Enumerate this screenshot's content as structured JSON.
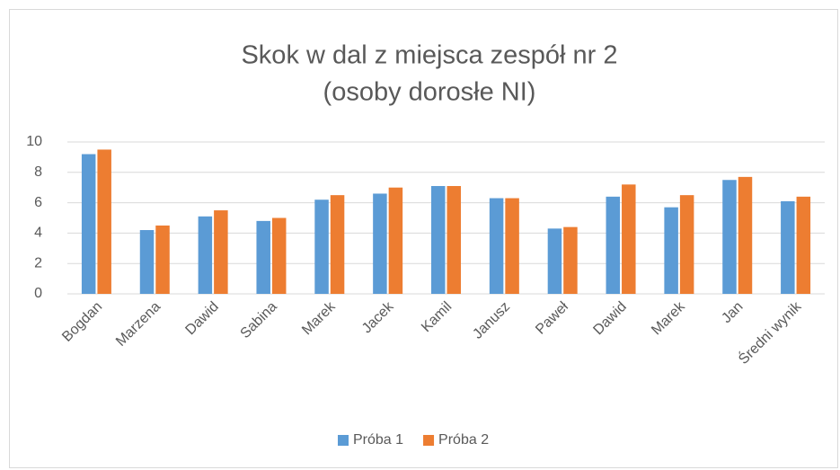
{
  "chart_data": {
    "type": "bar",
    "title": [
      "Skok w dal z miejsca zespół nr 2",
      "(osoby dorosłe NI)"
    ],
    "categories": [
      "Bogdan",
      "Marzena",
      "Dawid",
      "Sabina",
      "Marek",
      "Jacek",
      "Kamil",
      "Janusz",
      "Paweł",
      "Dawid",
      "Marek",
      "Jan",
      "Średni wynik"
    ],
    "series": [
      {
        "name": "Próba 1",
        "color": "#5b9bd5",
        "values": [
          9.2,
          4.2,
          5.1,
          4.8,
          6.2,
          6.6,
          7.1,
          6.3,
          4.3,
          6.4,
          5.7,
          7.5,
          6.1
        ]
      },
      {
        "name": "Próba 2",
        "color": "#ed7d31",
        "values": [
          9.5,
          4.5,
          5.5,
          5.0,
          6.5,
          7.0,
          7.1,
          6.3,
          4.4,
          7.2,
          6.5,
          7.7,
          6.4
        ]
      }
    ],
    "ylim": [
      0,
      10
    ],
    "yticks": [
      0,
      2,
      4,
      6,
      8,
      10
    ],
    "grid": true,
    "legend": "bottom"
  }
}
